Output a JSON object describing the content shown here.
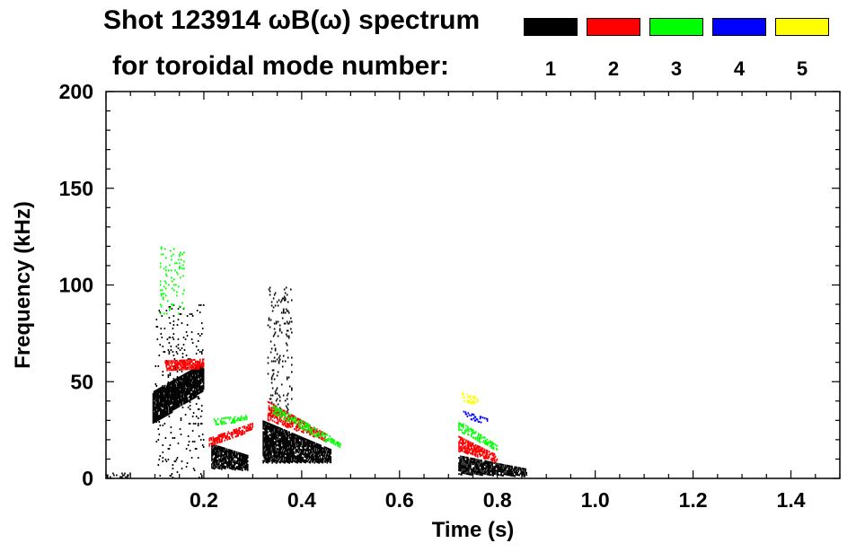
{
  "title": {
    "line1_prefix": "Shot 123914 ",
    "line1_omega": "ω",
    "line1_b": "B(",
    "line1_omega2": "ω",
    "line1_suffix": ") spectrum",
    "line2": "for toroidal mode number:"
  },
  "legend": [
    {
      "label": "1",
      "color": "#000000"
    },
    {
      "label": "2",
      "color": "#ff0000"
    },
    {
      "label": "3",
      "color": "#00ff00"
    },
    {
      "label": "4",
      "color": "#0000ff"
    },
    {
      "label": "5",
      "color": "#ffff00"
    }
  ],
  "chart_data": {
    "type": "heatmap",
    "title": "Shot 123914 ωB(ω) spectrum",
    "xlabel": "Time (s)",
    "ylabel": "Frequency (kHz)",
    "xlim": [
      0.0,
      1.5
    ],
    "ylim": [
      0,
      200
    ],
    "x_ticks": [
      {
        "value": 0.2,
        "label": "0.2"
      },
      {
        "value": 0.4,
        "label": "0.4"
      },
      {
        "value": 0.6,
        "label": "0.6"
      },
      {
        "value": 0.8,
        "label": "0.8"
      },
      {
        "value": 1.0,
        "label": "1.0"
      },
      {
        "value": 1.2,
        "label": "1.2"
      },
      {
        "value": 1.4,
        "label": "1.4"
      }
    ],
    "y_ticks": [
      {
        "value": 0,
        "label": "0"
      },
      {
        "value": 50,
        "label": "50"
      },
      {
        "value": 100,
        "label": "100"
      },
      {
        "value": 150,
        "label": "150"
      },
      {
        "value": 200,
        "label": "200"
      }
    ],
    "series": [
      {
        "name": "n=1",
        "color": "#000000",
        "regions": [
          {
            "t0": 0.095,
            "t1": 0.2,
            "f0": 28,
            "f1": 45,
            "f_end0": 45,
            "f_end1": 60,
            "density": 0.9
          },
          {
            "t0": 0.1,
            "t1": 0.2,
            "f0": 0,
            "f1": 90,
            "f_end0": 0,
            "f_end1": 90,
            "density": 0.05
          },
          {
            "t0": 0.215,
            "t1": 0.29,
            "f0": 5,
            "f1": 18,
            "f_end0": 4,
            "f_end1": 12,
            "density": 0.8
          },
          {
            "t0": 0.32,
            "t1": 0.46,
            "f0": 8,
            "f1": 30,
            "f_end0": 8,
            "f_end1": 15,
            "density": 0.85
          },
          {
            "t0": 0.33,
            "t1": 0.38,
            "f0": 30,
            "f1": 100,
            "f_end0": 30,
            "f_end1": 100,
            "density": 0.08
          },
          {
            "t0": 0.72,
            "t1": 0.86,
            "f0": 2,
            "f1": 12,
            "f_end0": 1,
            "f_end1": 5,
            "density": 0.75
          },
          {
            "t0": 0.0,
            "t1": 0.05,
            "f0": 0,
            "f1": 3,
            "f_end0": 0,
            "f_end1": 3,
            "density": 0.2
          }
        ]
      },
      {
        "name": "n=2",
        "color": "#ff0000",
        "regions": [
          {
            "t0": 0.12,
            "t1": 0.2,
            "f0": 55,
            "f1": 61,
            "f_end0": 57,
            "f_end1": 62,
            "density": 0.7
          },
          {
            "t0": 0.21,
            "t1": 0.3,
            "f0": 16,
            "f1": 21,
            "f_end0": 25,
            "f_end1": 29,
            "density": 0.6
          },
          {
            "t0": 0.33,
            "t1": 0.45,
            "f0": 30,
            "f1": 40,
            "f_end0": 19,
            "f_end1": 23,
            "density": 0.55
          },
          {
            "t0": 0.72,
            "t1": 0.8,
            "f0": 14,
            "f1": 22,
            "f_end0": 8,
            "f_end1": 12,
            "density": 0.6
          }
        ]
      },
      {
        "name": "n=3",
        "color": "#00ff00",
        "regions": [
          {
            "t0": 0.11,
            "t1": 0.16,
            "f0": 85,
            "f1": 120,
            "f_end0": 85,
            "f_end1": 120,
            "density": 0.08
          },
          {
            "t0": 0.22,
            "t1": 0.29,
            "f0": 27,
            "f1": 31,
            "f_end0": 30,
            "f_end1": 33,
            "density": 0.35
          },
          {
            "t0": 0.34,
            "t1": 0.48,
            "f0": 33,
            "f1": 38,
            "f_end0": 15,
            "f_end1": 19,
            "density": 0.4
          },
          {
            "t0": 0.72,
            "t1": 0.8,
            "f0": 24,
            "f1": 30,
            "f_end0": 14,
            "f_end1": 17,
            "density": 0.45
          }
        ]
      },
      {
        "name": "n=4",
        "color": "#0000ff",
        "regions": [
          {
            "t0": 0.73,
            "t1": 0.78,
            "f0": 31,
            "f1": 35,
            "f_end0": 28,
            "f_end1": 31,
            "density": 0.35
          }
        ]
      },
      {
        "name": "n=5",
        "color": "#ffff00",
        "regions": [
          {
            "t0": 0.72,
            "t1": 0.76,
            "f0": 40,
            "f1": 45,
            "f_end0": 38,
            "f_end1": 42,
            "density": 0.3
          }
        ]
      }
    ]
  }
}
